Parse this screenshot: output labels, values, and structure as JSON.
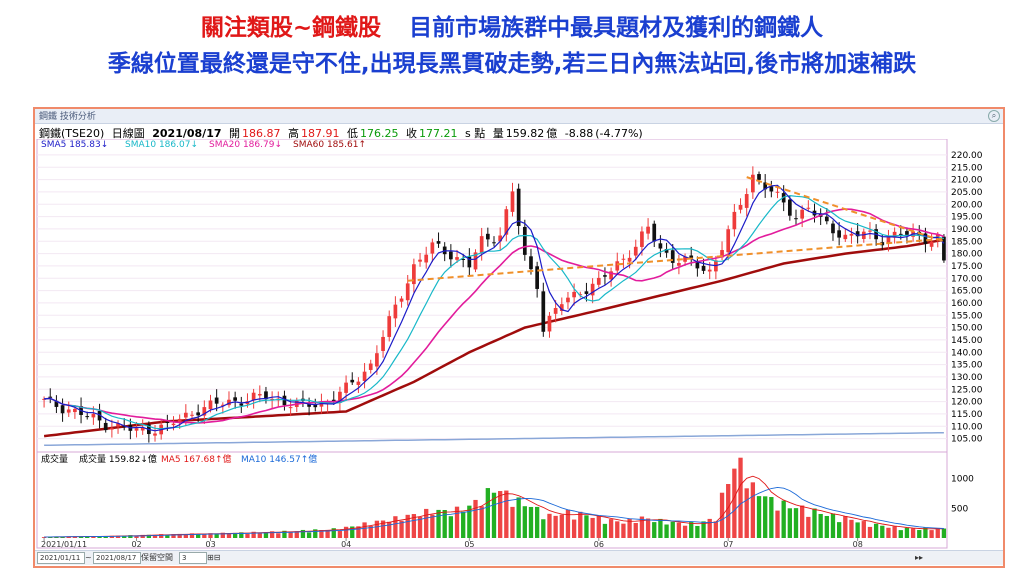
{
  "headline": {
    "line1_red": "關注類股~鋼鐵股",
    "line1_blue": "目前市場族群中最具題材及獲利的鋼鐵人",
    "line2": "季線位置最終還是守不住,出現長黑貫破走勢,若三日內無法站回,後市將加速補跌"
  },
  "window": {
    "title": "鋼鐵 技術分析",
    "corner_icon": "magnifier-icon"
  },
  "info": {
    "symbol": "鋼鐵(TSE20)",
    "period": "日線圖",
    "date": "2021/08/17",
    "open_label": "開",
    "open": "186.87",
    "high_label": "高",
    "high": "187.91",
    "low_label": "低",
    "low": "176.25",
    "close_label": "收",
    "close": "177.21",
    "unit": "s 點",
    "volume_label": "量",
    "volume": "159.82",
    "volume_unit": "億",
    "change": "-8.88",
    "change_pct": "(-4.77%)"
  },
  "colors": {
    "up": "#ee3b3b",
    "down": "#111111",
    "vol_up": "#ee4545",
    "vol_down": "#22b022",
    "sma5": "#1c1cc8",
    "sma10": "#18b8c8",
    "sma20": "#e21c9c",
    "sma60": "#a00c0c",
    "trend": "#f0902a",
    "long_ma": "#8aa7d8"
  },
  "chart_data": [
    {
      "type": "candlestick",
      "legend": [
        {
          "name": "SMA5",
          "value": "185.83",
          "arrow": "↓",
          "color": "#1c1cc8"
        },
        {
          "name": "SMA10",
          "value": "186.07",
          "arrow": "↓",
          "color": "#18b8c8"
        },
        {
          "name": "SMA20",
          "value": "186.79",
          "arrow": "↓",
          "color": "#e21c9c"
        },
        {
          "name": "SMA60",
          "value": "185.61",
          "arrow": "↑",
          "color": "#a00c0c"
        }
      ],
      "y_ticks": [
        "220.00",
        "215.00",
        "210.00",
        "205.00",
        "200.00",
        "195.00",
        "190.00",
        "185.00",
        "180.00",
        "175.00",
        "170.00",
        "165.00",
        "160.00",
        "155.00",
        "150.00",
        "145.00",
        "140.00",
        "135.00",
        "130.00",
        "125.00",
        "120.00",
        "115.00",
        "110.00",
        "105.00"
      ],
      "ylim": [
        102,
        222
      ],
      "x_labels": [
        {
          "label": "2021/01/11",
          "index": 0
        },
        {
          "label": "02",
          "index": 15
        },
        {
          "label": "03",
          "index": 27
        },
        {
          "label": "04",
          "index": 49
        },
        {
          "label": "05",
          "index": 69
        },
        {
          "label": "06",
          "index": 90
        },
        {
          "label": "07",
          "index": 111
        },
        {
          "label": "08",
          "index": 132
        }
      ],
      "n": 147,
      "key_closes": [
        [
          0,
          120
        ],
        [
          4,
          117
        ],
        [
          10,
          111
        ],
        [
          15,
          108
        ],
        [
          20,
          110
        ],
        [
          25,
          117
        ],
        [
          30,
          120
        ],
        [
          36,
          122
        ],
        [
          42,
          118
        ],
        [
          46,
          120
        ],
        [
          49,
          125
        ],
        [
          53,
          135
        ],
        [
          57,
          158
        ],
        [
          60,
          175
        ],
        [
          63,
          183
        ],
        [
          66,
          180
        ],
        [
          69,
          175
        ],
        [
          71,
          185
        ],
        [
          74,
          188
        ],
        [
          76,
          205
        ],
        [
          78,
          178
        ],
        [
          80,
          168
        ],
        [
          81,
          150
        ],
        [
          84,
          160
        ],
        [
          87,
          165
        ],
        [
          90,
          168
        ],
        [
          93,
          176
        ],
        [
          96,
          183
        ],
        [
          98,
          190
        ],
        [
          100,
          182
        ],
        [
          102,
          178
        ],
        [
          105,
          176
        ],
        [
          108,
          173
        ],
        [
          110,
          183
        ],
        [
          113,
          200
        ],
        [
          115,
          212
        ],
        [
          118,
          205
        ],
        [
          120,
          200
        ],
        [
          122,
          195
        ],
        [
          124,
          199
        ],
        [
          126,
          193
        ],
        [
          128,
          190
        ],
        [
          130,
          187
        ],
        [
          133,
          188
        ],
        [
          136,
          186
        ],
        [
          139,
          188
        ],
        [
          142,
          187
        ],
        [
          144,
          186
        ],
        [
          145,
          186
        ],
        [
          146,
          177.21
        ]
      ],
      "sma60_points": [
        [
          0,
          106
        ],
        [
          20,
          112
        ],
        [
          35,
          114
        ],
        [
          49,
          116
        ],
        [
          60,
          128
        ],
        [
          69,
          140
        ],
        [
          78,
          150
        ],
        [
          90,
          157
        ],
        [
          100,
          163
        ],
        [
          110,
          169
        ],
        [
          120,
          176
        ],
        [
          130,
          180
        ],
        [
          140,
          183
        ],
        [
          146,
          185.61
        ]
      ],
      "long_ma_points": [
        [
          0,
          102.3
        ],
        [
          146,
          107.4
        ]
      ],
      "trendlines": [
        {
          "from": [
            59,
            169
          ],
          "to": [
            146,
            186
          ]
        },
        {
          "from": [
            114,
            211
          ],
          "to": [
            146,
            185
          ]
        }
      ],
      "sma_last": {
        "sma5": 185.83,
        "sma10": 186.07,
        "sma20": 186.79,
        "sma60": 185.61
      }
    },
    {
      "type": "bar",
      "legend": [
        {
          "name": "成交量",
          "value": "",
          "arrow": "",
          "color": "#000000"
        },
        {
          "name": "成交量",
          "value": "159.82",
          "arrow": "↓億",
          "color": "#000000"
        },
        {
          "name": "MA5",
          "value": "167.68",
          "arrow": "↑億",
          "color": "#e01818"
        },
        {
          "name": "MA10",
          "value": "146.57",
          "arrow": "↑億",
          "color": "#1c6ad8"
        }
      ],
      "y_ticks": [
        "1000",
        "500"
      ],
      "ylim": [
        0,
        1400
      ],
      "key_volumes": [
        [
          0,
          20
        ],
        [
          10,
          30
        ],
        [
          20,
          60
        ],
        [
          30,
          80
        ],
        [
          40,
          110
        ],
        [
          48,
          150
        ],
        [
          52,
          230
        ],
        [
          56,
          300
        ],
        [
          60,
          380
        ],
        [
          63,
          450
        ],
        [
          66,
          430
        ],
        [
          69,
          520
        ],
        [
          71,
          650
        ],
        [
          73,
          820
        ],
        [
          75,
          720
        ],
        [
          77,
          600
        ],
        [
          79,
          520
        ],
        [
          82,
          360
        ],
        [
          85,
          420
        ],
        [
          88,
          380
        ],
        [
          91,
          300
        ],
        [
          94,
          260
        ],
        [
          97,
          330
        ],
        [
          100,
          280
        ],
        [
          103,
          240
        ],
        [
          106,
          230
        ],
        [
          109,
          330
        ],
        [
          111,
          1000
        ],
        [
          112,
          1120
        ],
        [
          113,
          1230
        ],
        [
          115,
          820
        ],
        [
          118,
          620
        ],
        [
          121,
          520
        ],
        [
          124,
          470
        ],
        [
          127,
          380
        ],
        [
          130,
          330
        ],
        [
          133,
          250
        ],
        [
          136,
          200
        ],
        [
          139,
          160
        ],
        [
          142,
          150
        ],
        [
          146,
          159.82
        ]
      ]
    }
  ],
  "status": {
    "from_date": "2021/01/11",
    "tilde": "~",
    "to_date": "2021/08/17",
    "keep_space_label": "保留空間",
    "keep_space_value": "3"
  }
}
